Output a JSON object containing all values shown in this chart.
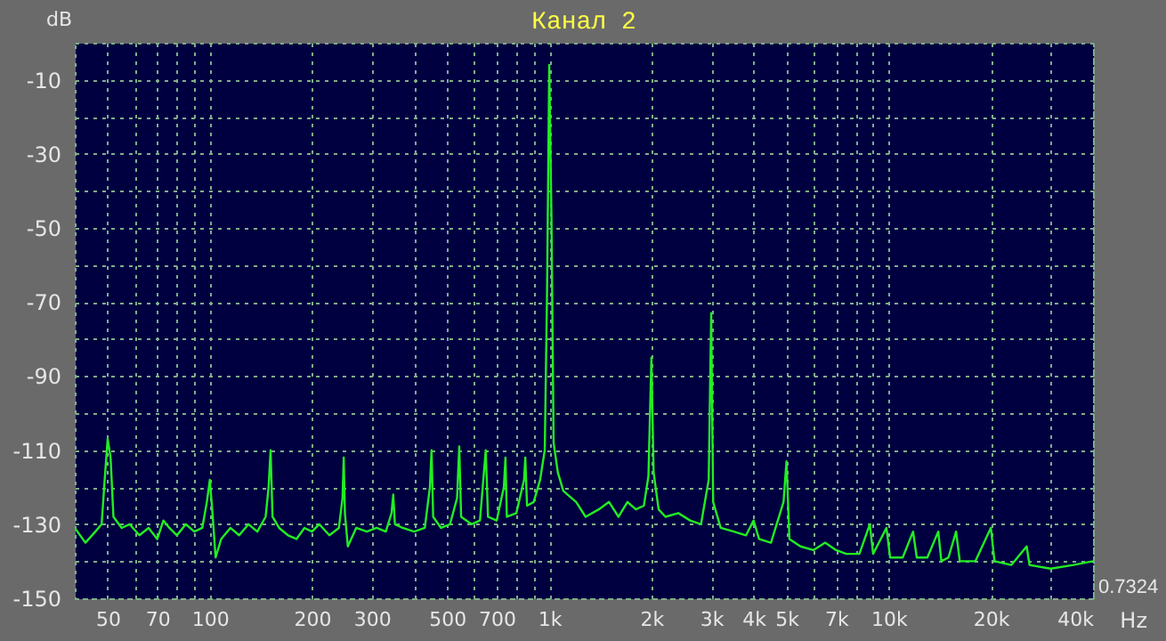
{
  "chart_data": {
    "type": "line",
    "title": "Канал 2",
    "xlabel": "Hz",
    "ylabel": "dB",
    "log": "x",
    "grid": true,
    "legend": false,
    "marker": "none",
    "line_style": "solid",
    "annotations": [
      "0.7324"
    ],
    "xlim": [
      40,
      40000
    ],
    "ylim": [
      -150,
      0
    ],
    "xticks": [
      50,
      {
        "value": 60,
        "label": null
      },
      70,
      {
        "value": 80,
        "label": null
      },
      {
        "value": 90,
        "label": null
      },
      100,
      200,
      300,
      {
        "value": 400,
        "label": null
      },
      500,
      {
        "value": 600,
        "label": null
      },
      700,
      {
        "value": 800,
        "label": null
      },
      {
        "value": 900,
        "label": null
      },
      {
        "value": 1000,
        "label": "1k"
      },
      {
        "value": 2000,
        "label": "2k"
      },
      {
        "value": 3000,
        "label": "3k"
      },
      {
        "value": 4000,
        "label": "4k"
      },
      {
        "value": 5000,
        "label": "5k"
      },
      {
        "value": 6000,
        "label": null
      },
      {
        "value": 7000,
        "label": "7k"
      },
      {
        "value": 8000,
        "label": null
      },
      {
        "value": 9000,
        "label": null
      },
      {
        "value": 10000,
        "label": "10k"
      },
      {
        "value": 20000,
        "label": "20k"
      },
      {
        "value": 30000,
        "label": null
      },
      {
        "value": 40000,
        "label": "40k"
      }
    ],
    "yticks": [
      {
        "value": 0,
        "label": null
      },
      -10,
      {
        "value": -20,
        "label": null
      },
      -30,
      {
        "value": -40,
        "label": null
      },
      -50,
      {
        "value": -60,
        "label": null
      },
      -70,
      {
        "value": -80,
        "label": null
      },
      -90,
      {
        "value": -100,
        "label": null
      },
      -110,
      {
        "value": -120,
        "label": null
      },
      -130,
      {
        "value": -140,
        "label": null
      },
      -150
    ],
    "x": [
      40,
      43,
      46,
      48,
      49,
      50,
      51,
      52,
      55,
      58,
      62,
      66,
      70,
      73,
      76,
      80,
      85,
      90,
      95,
      98,
      100,
      102,
      104,
      108,
      115,
      122,
      130,
      138,
      146,
      149,
      151,
      153,
      160,
      170,
      180,
      190,
      200,
      210,
      225,
      240,
      246,
      248,
      250,
      255,
      270,
      290,
      310,
      330,
      343,
      347,
      351,
      370,
      400,
      430,
      445,
      450,
      455,
      480,
      510,
      535,
      543,
      550,
      590,
      625,
      650,
      660,
      700,
      735,
      743,
      750,
      800,
      843,
      850,
      860,
      900,
      940,
      970,
      985,
      1000,
      1015,
      1030,
      1060,
      1100,
      1200,
      1280,
      1400,
      1500,
      1600,
      1700,
      1800,
      1900,
      1960,
      2000,
      2030,
      2100,
      2200,
      2400,
      2600,
      2800,
      2950,
      3000,
      3040,
      3200,
      3500,
      3800,
      4000,
      4150,
      4500,
      4900,
      5000,
      5100,
      5500,
      6000,
      6500,
      7000,
      7500,
      8200,
      8800,
      9000,
      9850,
      10100,
      11000,
      11800,
      12100,
      13000,
      14000,
      14300,
      15000,
      15800,
      16200,
      18000,
      20000,
      20500,
      23000,
      25500,
      26000,
      30000,
      35000,
      40000
    ],
    "series": [
      {
        "color": "#22ee22",
        "values": [
          -131,
          -135,
          -132,
          -130,
          -118,
          -107,
          -112,
          -128,
          -131,
          -130,
          -133,
          -131,
          -134,
          -129,
          -131,
          -133,
          -130,
          -132,
          -131,
          -124,
          -118,
          -128,
          -139,
          -134,
          -131,
          -133,
          -130,
          -132,
          -128,
          -120,
          -110,
          -128,
          -131,
          -133,
          -134,
          -131,
          -132,
          -130,
          -133,
          -131,
          -123,
          -112,
          -127,
          -136,
          -131,
          -132,
          -131,
          -132,
          -127,
          -122,
          -130,
          -131,
          -132,
          -131,
          -120,
          -110,
          -128,
          -131,
          -130,
          -123,
          -109,
          -128,
          -130,
          -129,
          -110,
          -128,
          -129,
          -120,
          -112,
          -128,
          -127,
          -118,
          -112,
          -125,
          -124,
          -118,
          -110,
          -68,
          -6,
          -47,
          -108,
          -116,
          -121,
          -124,
          -128,
          -126,
          -124,
          -128,
          -124,
          -126,
          -125,
          -117,
          -85,
          -116,
          -126,
          -128,
          -127,
          -129,
          -130,
          -118,
          -73,
          -124,
          -131,
          -132,
          -133,
          -129,
          -134,
          -135,
          -124,
          -113,
          -134,
          -136,
          -137,
          -135,
          -137,
          -138,
          -138,
          -130,
          -138,
          -131,
          -139,
          -139,
          -132,
          -139,
          -139,
          -132,
          -140,
          -139,
          -132,
          -140,
          -140,
          -131,
          -140,
          -141,
          -136,
          -141,
          -142,
          -141,
          -140
        ]
      }
    ]
  }
}
